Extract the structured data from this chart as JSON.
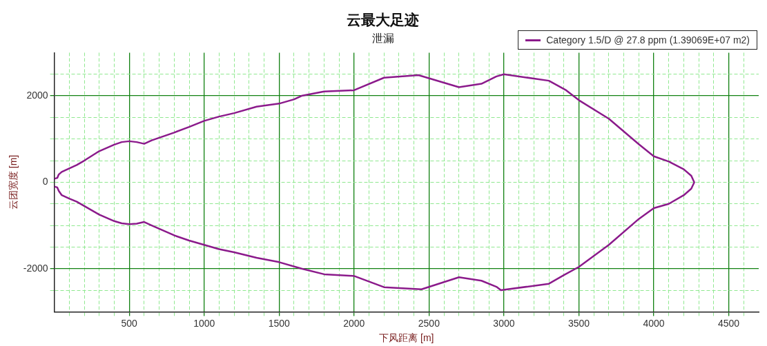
{
  "chart_data": {
    "type": "line",
    "title": "云最大足迹",
    "subtitle": "泄漏",
    "xlabel": "下风距离 [m]",
    "ylabel": "云团宽度 [m]",
    "xlim": [
      0,
      4700
    ],
    "ylim": [
      -3000,
      3000
    ],
    "xticks": [
      {
        "value": 100,
        "label": null
      },
      {
        "value": 200,
        "label": null
      },
      {
        "value": 300,
        "label": null
      },
      {
        "value": 400,
        "label": null
      },
      500,
      {
        "value": 600,
        "label": null
      },
      {
        "value": 700,
        "label": null
      },
      {
        "value": 800,
        "label": null
      },
      {
        "value": 900,
        "label": null
      },
      1000,
      {
        "value": 1100,
        "label": null
      },
      {
        "value": 1200,
        "label": null
      },
      {
        "value": 1300,
        "label": null
      },
      {
        "value": 1400,
        "label": null
      },
      1500,
      {
        "value": 1600,
        "label": null
      },
      {
        "value": 1700,
        "label": null
      },
      {
        "value": 1800,
        "label": null
      },
      {
        "value": 1900,
        "label": null
      },
      2000,
      {
        "value": 2100,
        "label": null
      },
      {
        "value": 2200,
        "label": null
      },
      {
        "value": 2300,
        "label": null
      },
      {
        "value": 2400,
        "label": null
      },
      2500,
      {
        "value": 2600,
        "label": null
      },
      {
        "value": 2700,
        "label": null
      },
      {
        "value": 2800,
        "label": null
      },
      {
        "value": 2900,
        "label": null
      },
      3000,
      {
        "value": 3100,
        "label": null
      },
      {
        "value": 3200,
        "label": null
      },
      {
        "value": 3300,
        "label": null
      },
      {
        "value": 3400,
        "label": null
      },
      3500,
      {
        "value": 3600,
        "label": null
      },
      {
        "value": 3700,
        "label": null
      },
      {
        "value": 3800,
        "label": null
      },
      {
        "value": 3900,
        "label": null
      },
      4000,
      {
        "value": 4100,
        "label": null
      },
      {
        "value": 4200,
        "label": null
      },
      {
        "value": 4300,
        "label": null
      },
      {
        "value": 4400,
        "label": null
      },
      4500,
      {
        "value": 4600,
        "label": null
      }
    ],
    "yticks": [
      {
        "value": -2500,
        "label": null
      },
      -2000,
      {
        "value": -1500,
        "label": null
      },
      {
        "value": -1000,
        "label": null
      },
      {
        "value": -500,
        "label": null
      },
      0,
      {
        "value": 500,
        "label": null
      },
      {
        "value": 1000,
        "label": null
      },
      {
        "value": 1500,
        "label": null
      },
      2000,
      {
        "value": 2500,
        "label": null
      }
    ],
    "grid": true,
    "legend": "top right",
    "marker": "none",
    "line_style": "solid",
    "series": [
      {
        "name": "Category 1.5/D @ 27.8 ppm (1.39069E+07 m2)",
        "color": "#8b1a8b",
        "x": [
          0,
          20,
          30,
          50,
          100,
          150,
          200,
          300,
          400,
          450,
          500,
          550,
          600,
          650,
          800,
          900,
          1000,
          1100,
          1200,
          1350,
          1500,
          1600,
          1650,
          1800,
          2000,
          2200,
          2430,
          2700,
          2850,
          2950,
          3000,
          3300,
          3415,
          3500,
          3700,
          3900,
          4000,
          4100,
          4200,
          4250,
          4270,
          4250,
          4200,
          4100,
          4000,
          3900,
          3700,
          3500,
          3400,
          3300,
          2980,
          2950,
          2850,
          2700,
          2450,
          2200,
          2000,
          1800,
          1650,
          1500,
          1350,
          1200,
          1100,
          1000,
          900,
          800,
          650,
          600,
          550,
          500,
          450,
          400,
          300,
          200,
          150,
          100,
          50,
          30,
          20,
          0
        ],
        "values": [
          80,
          100,
          180,
          240,
          320,
          400,
          500,
          720,
          870,
          930,
          950,
          930,
          890,
          970,
          1150,
          1280,
          1420,
          1520,
          1600,
          1750,
          1820,
          1920,
          2000,
          2100,
          2130,
          2420,
          2480,
          2200,
          2280,
          2450,
          2500,
          2350,
          2130,
          1900,
          1470,
          880,
          600,
          480,
          300,
          150,
          0,
          -150,
          -300,
          -500,
          -600,
          -850,
          -1450,
          -1960,
          -2150,
          -2350,
          -2500,
          -2420,
          -2280,
          -2200,
          -2480,
          -2430,
          -2170,
          -2130,
          -2000,
          -1850,
          -1750,
          -1620,
          -1550,
          -1450,
          -1350,
          -1230,
          -1000,
          -920,
          -960,
          -970,
          -950,
          -900,
          -750,
          -550,
          -450,
          -380,
          -300,
          -200,
          -120,
          -100
        ]
      }
    ]
  }
}
